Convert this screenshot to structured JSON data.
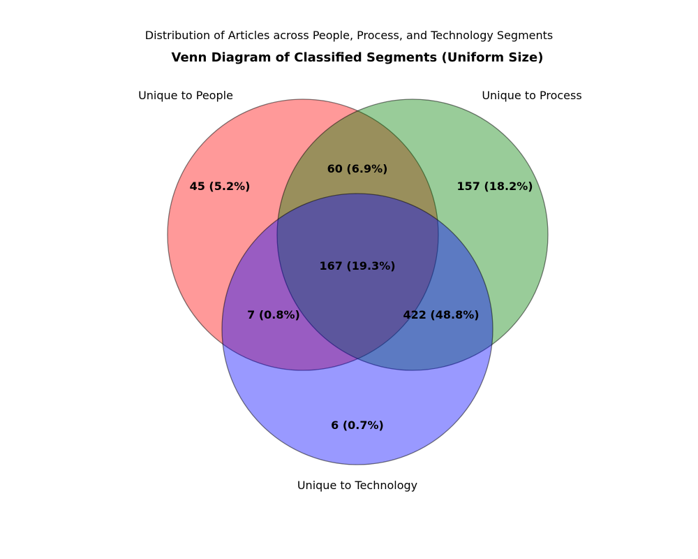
{
  "suptitle": "Distribution of Articles across People, Process, and Technology Segments",
  "title": "Venn Diagram of Classified Segments (Uniform Size)",
  "sets": {
    "people": {
      "label": "Unique to People",
      "color": "#ff0000"
    },
    "process": {
      "label": "Unique to Process",
      "color": "#008000"
    },
    "technology": {
      "label": "Unique to Technology",
      "color": "#0000ff"
    }
  },
  "regions": {
    "people_only": "45 (5.2%)",
    "process_only": "157 (18.2%)",
    "technology_only": "6 (0.7%)",
    "people_process": "60 (6.9%)",
    "people_technology": "7 (0.8%)",
    "process_technology": "422 (48.8%)",
    "all_three": "167 (19.3%)"
  }
}
